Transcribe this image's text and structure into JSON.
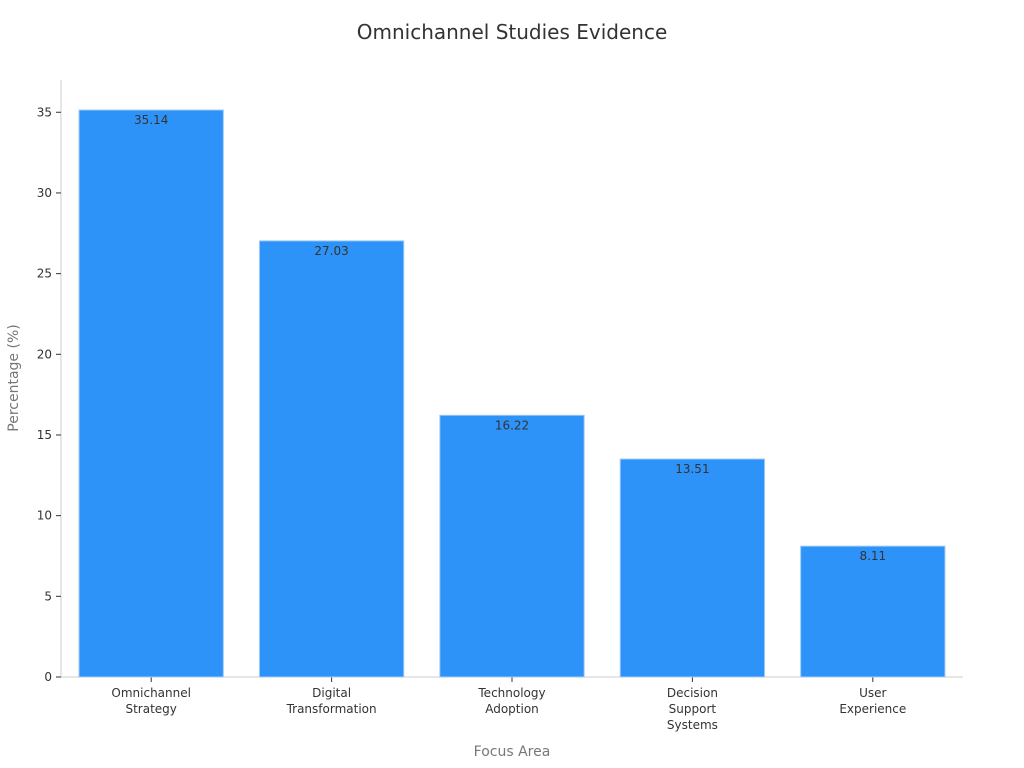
{
  "chart_data": {
    "type": "bar",
    "title": "Omnichannel Studies Evidence",
    "xlabel": "Focus Area",
    "ylabel": "Percentage (%)",
    "categories": [
      [
        "Omnichannel",
        "Strategy"
      ],
      [
        "Digital",
        "Transformation"
      ],
      [
        "Technology",
        "Adoption"
      ],
      [
        "Decision",
        "Support",
        "Systems"
      ],
      [
        "User",
        "Experience"
      ]
    ],
    "values": [
      35.14,
      27.03,
      16.22,
      13.51,
      8.11
    ],
    "data_labels": [
      "35.14",
      "27.03",
      "16.22",
      "13.51",
      "8.11"
    ],
    "yticks": [
      0,
      5,
      10,
      15,
      20,
      25,
      30,
      35
    ],
    "ylim": [
      0,
      37
    ],
    "grid": false,
    "legend": "none",
    "bar_color": "#2e93f8",
    "bar_edge_color": "#9ecbf7",
    "axis_color": "#cccccc"
  }
}
